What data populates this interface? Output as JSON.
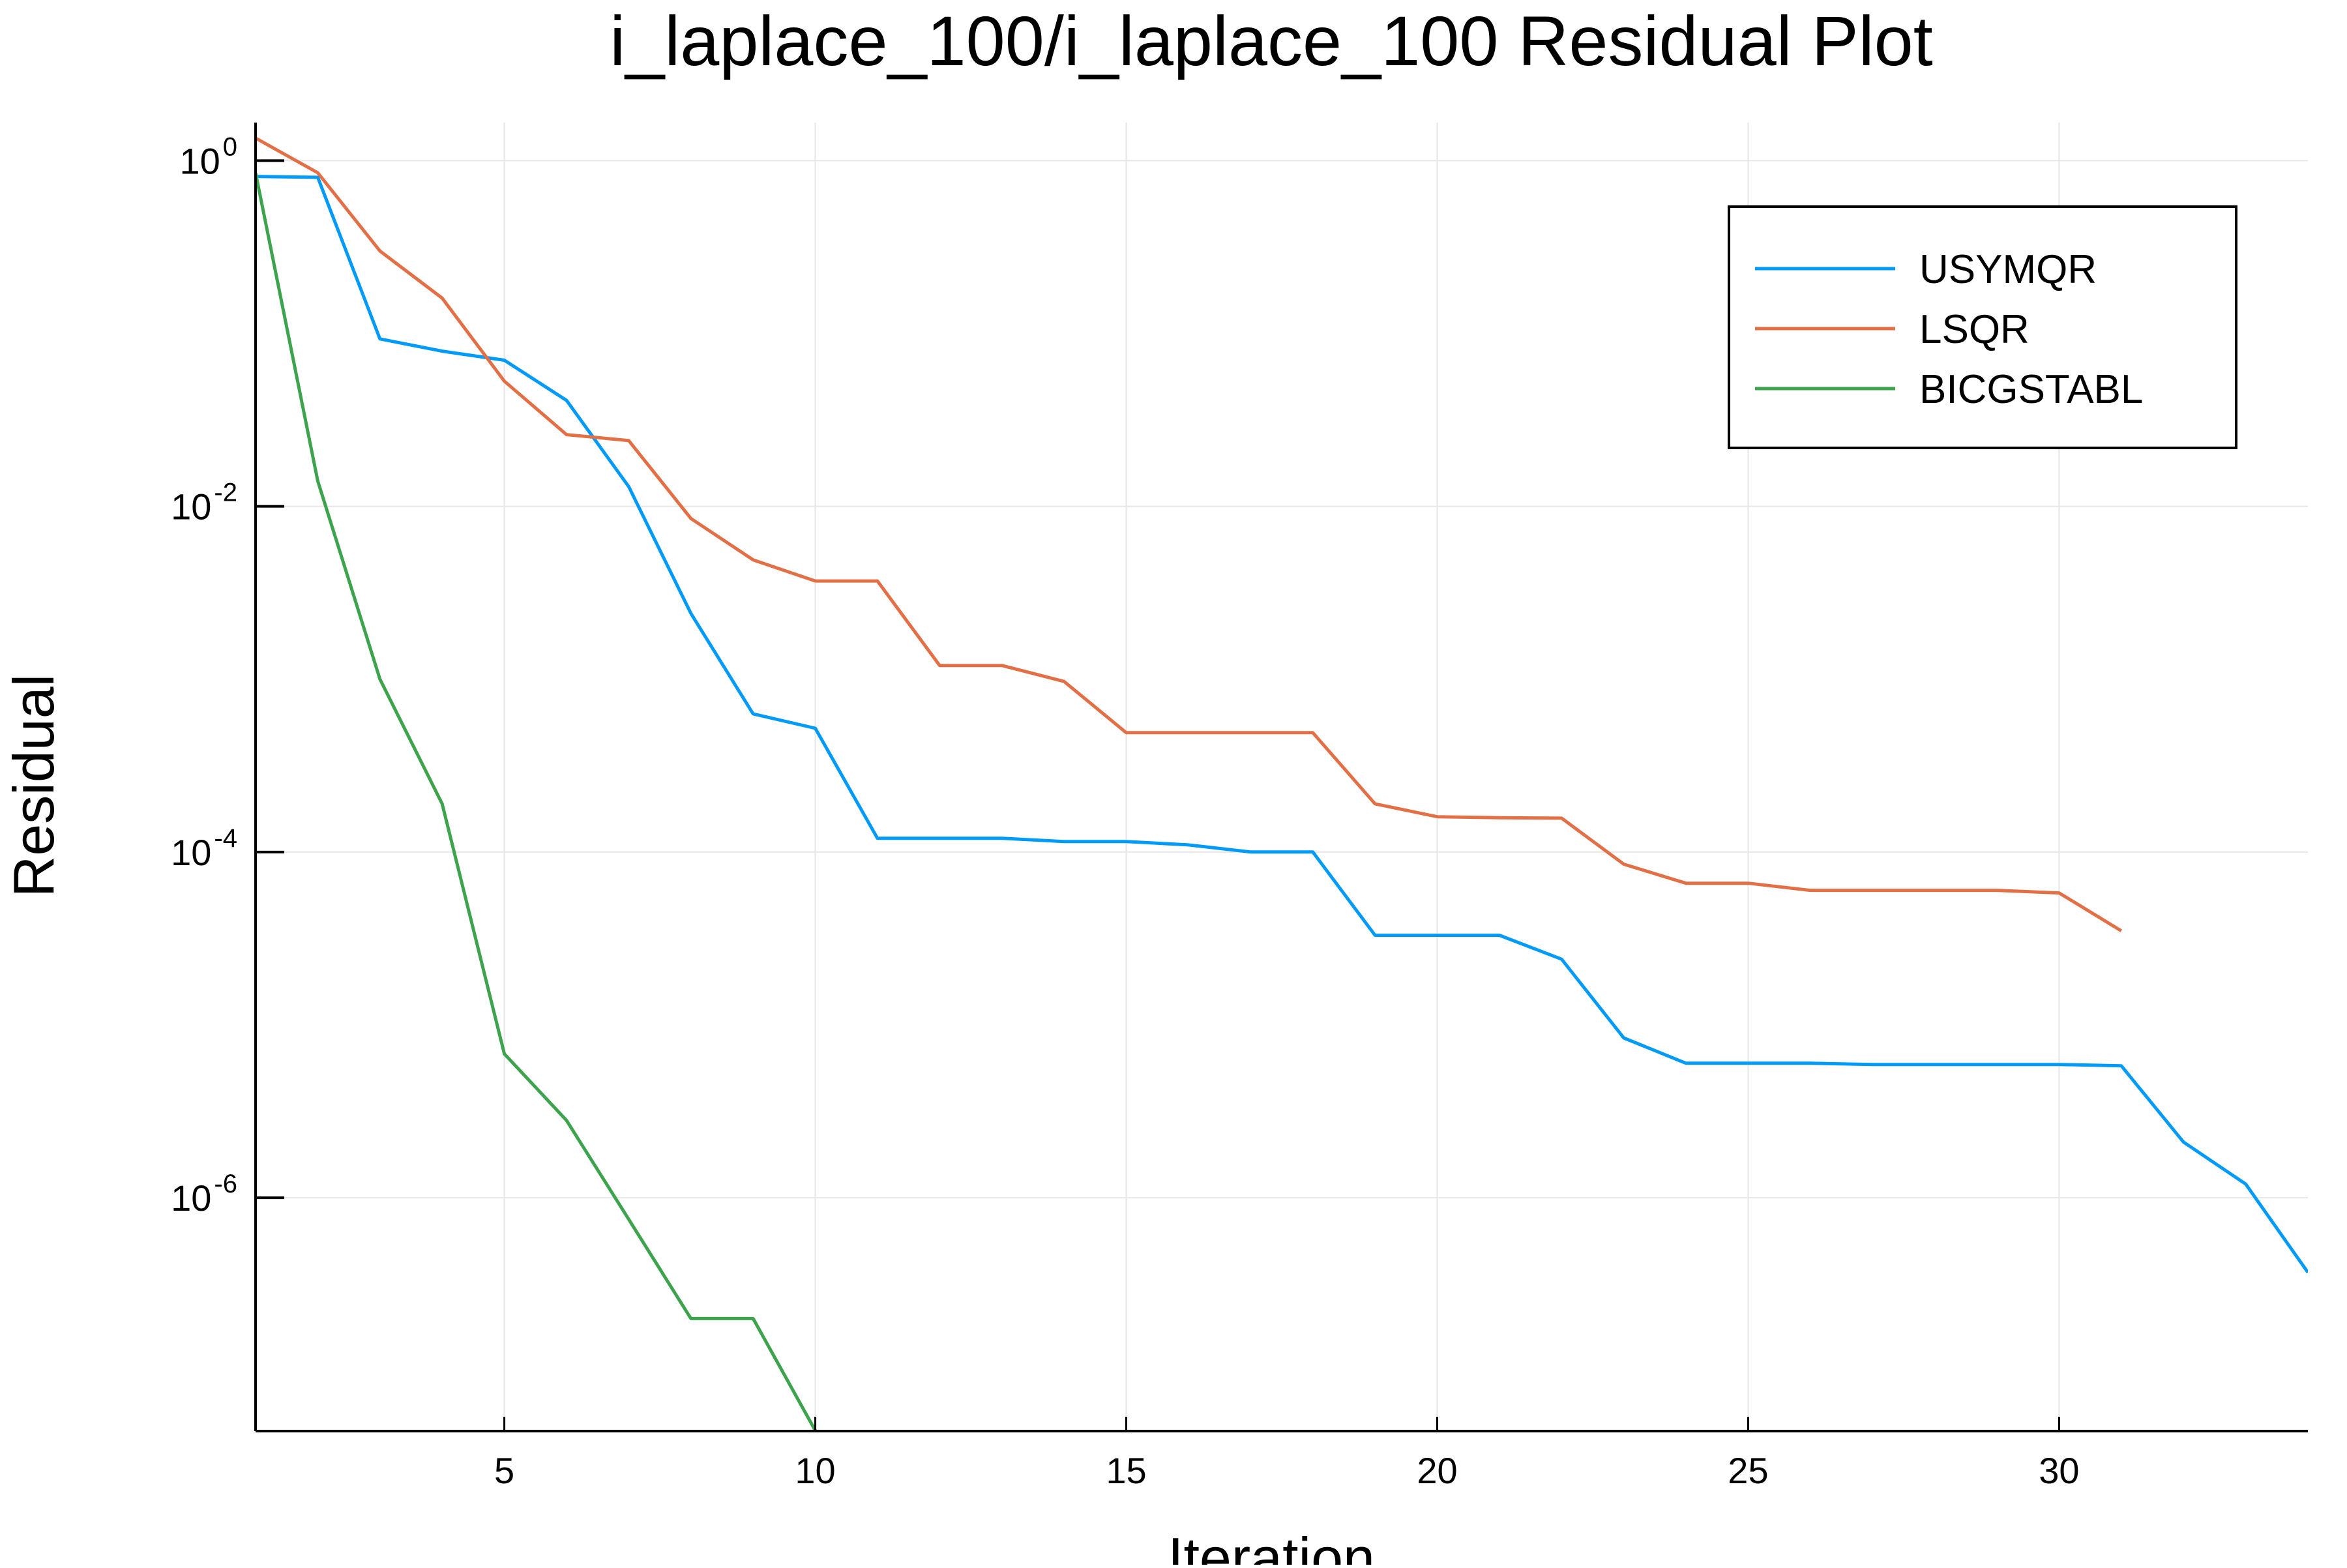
{
  "chart_data": {
    "type": "line",
    "title": "i_laplace_100/i_laplace_100 Residual Plot",
    "xlabel": "Iteration",
    "ylabel": "Residual",
    "xlim": [
      1,
      34
    ],
    "ylim_log10": [
      -7.35,
      0.22
    ],
    "y_scale": "log",
    "x_ticks": [
      {
        "value": 5,
        "label": "5"
      },
      {
        "value": 10,
        "label": "10"
      },
      {
        "value": 15,
        "label": "15"
      },
      {
        "value": 20,
        "label": "20"
      },
      {
        "value": 25,
        "label": "25"
      },
      {
        "value": 30,
        "label": "30"
      }
    ],
    "y_ticks": [
      {
        "value": 0,
        "base": "10",
        "exp": "0"
      },
      {
        "value": -2,
        "base": "10",
        "exp": "-2"
      },
      {
        "value": -4,
        "base": "10",
        "exp": "-4"
      },
      {
        "value": -6,
        "base": "10",
        "exp": "-6"
      }
    ],
    "grid": true,
    "legend_position": "top-right",
    "series": [
      {
        "name": "USYMQR",
        "color": "#009af9",
        "x": [
          1,
          2,
          3,
          4,
          5,
          6,
          7,
          8,
          9,
          10,
          11,
          12,
          13,
          14,
          15,
          16,
          17,
          18,
          19,
          20,
          21,
          22,
          23,
          24,
          25,
          26,
          27,
          28,
          29,
          30,
          31,
          32,
          33,
          34
        ],
        "y": [
          0.81,
          0.8,
          0.093,
          0.079,
          0.07,
          0.041,
          0.013,
          0.0024,
          0.00063,
          0.00052,
          0.00012,
          0.00012,
          0.00012,
          0.000115,
          0.000115,
          0.00011,
          0.0001,
          0.0001,
          3.3e-05,
          3.3e-05,
          3.3e-05,
          2.4e-05,
          8.4e-06,
          6e-06,
          6e-06,
          6e-06,
          5.9e-06,
          5.9e-06,
          5.9e-06,
          5.9e-06,
          5.8e-06,
          2.1e-06,
          1.2e-06,
          3.7e-07
        ]
      },
      {
        "name": "LSQR",
        "color": "#e26f46",
        "x": [
          1,
          2,
          3,
          4,
          5,
          6,
          7,
          8,
          9,
          10,
          11,
          12,
          13,
          14,
          15,
          16,
          17,
          18,
          19,
          20,
          21,
          22,
          23,
          24,
          25,
          26,
          27,
          28,
          29,
          30,
          31
        ],
        "y": [
          1.35,
          0.85,
          0.3,
          0.16,
          0.053,
          0.026,
          0.024,
          0.0085,
          0.0049,
          0.0037,
          0.0037,
          0.0012,
          0.0012,
          0.00097,
          0.00049,
          0.00049,
          0.00049,
          0.00049,
          0.00019,
          0.00016,
          0.000158,
          0.000157,
          8.5e-05,
          6.6e-05,
          6.6e-05,
          6e-05,
          6e-05,
          6e-05,
          6e-05,
          5.8e-05,
          3.5e-05
        ]
      },
      {
        "name": "BICGSTABL",
        "color": "#3da44d",
        "x": [
          1,
          2,
          3,
          4,
          5,
          6,
          7,
          8,
          9,
          10
        ],
        "y": [
          0.85,
          0.014,
          0.001,
          0.00019,
          6.8e-06,
          2.8e-06,
          7.5e-07,
          2e-07,
          2e-07,
          4.5e-08
        ]
      }
    ]
  }
}
